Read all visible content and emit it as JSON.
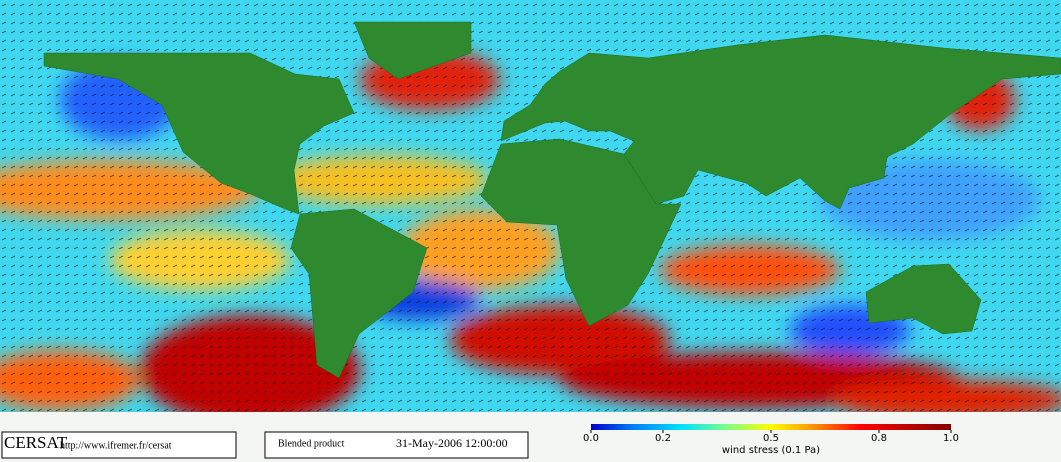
{
  "footer": {
    "logo": "CERSAT",
    "url": "http://www.ifremer.fr/cersat",
    "product": "Blended product",
    "date": "31-May-2006 12:00:00"
  },
  "colorbar": {
    "label": "wind stress (0.1 Pa)",
    "lim": [
      0,
      1
    ],
    "ticks": [
      {
        "value": 0,
        "label": "0.0"
      },
      {
        "value": 0.2,
        "label": "0.2"
      },
      {
        "value": 0.5,
        "label": "0.5"
      },
      {
        "value": 0.8,
        "label": "0.8"
      },
      {
        "value": 1,
        "label": "1.0"
      }
    ]
  }
}
